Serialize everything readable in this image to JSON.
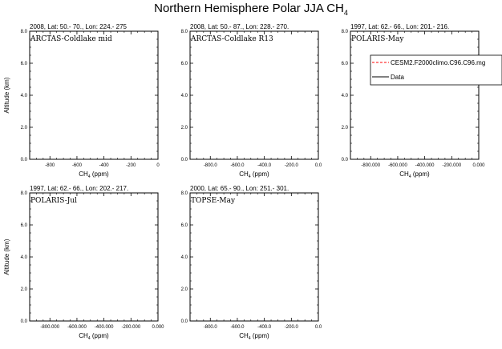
{
  "figure": {
    "title_main": "Northern Hemisphere Polar JJA CH",
    "title_sub": "4"
  },
  "chart_data": [
    {
      "type": "line",
      "header": "2008, Lat:  50.- 70., Lon: 224.- 275",
      "campaign": "ARCTAS-Coldlake mid",
      "xlabel": "CH",
      "xlabel_sub": "4",
      "xlabel_unit": " (ppm)",
      "ylabel": "Altitude (km)",
      "xlim": [
        -950,
        0
      ],
      "ylim": [
        0,
        8
      ],
      "x_ticks": [
        "-800",
        "-600",
        "-400",
        "-200",
        "0"
      ],
      "y_ticks": [
        "0.0",
        "2.0",
        "4.0",
        "6.0",
        "8.0"
      ],
      "series": []
    },
    {
      "type": "line",
      "header": "2008, Lat:  50.- 87., Lon: 228.- 270.",
      "campaign": "ARCTAS-Coldlake R13",
      "xlabel": "CH",
      "xlabel_sub": "4",
      "xlabel_unit": " (ppm)",
      "ylabel": "",
      "xlim": [
        -950,
        0
      ],
      "ylim": [
        0,
        8
      ],
      "x_ticks": [
        "-800.0",
        "-600.0",
        "-400.0",
        "-200.0",
        "0.0"
      ],
      "y_ticks": [
        "0.0",
        "2.0",
        "4.0",
        "6.0",
        "8.0"
      ],
      "series": []
    },
    {
      "type": "line",
      "header": "1997, Lat: 62.- 66., Lon: 201.- 216.",
      "campaign": "POLARIS-May",
      "xlabel": "CH",
      "xlabel_sub": "4",
      "xlabel_unit": " (ppm)",
      "ylabel": "",
      "xlim": [
        -950,
        0
      ],
      "ylim": [
        0,
        8
      ],
      "x_ticks": [
        "-800.000",
        "-600.000",
        "-400.000",
        "-200.000",
        "0.000"
      ],
      "y_ticks": [
        "0.0",
        "2.0",
        "4.0",
        "6.0",
        "8.0"
      ],
      "legend": {
        "placement": "top-right",
        "entries": [
          {
            "label": "CESM2.F2000climo.C96.C96.mg",
            "color": "#ff0000",
            "dashed": true
          },
          {
            "label": "Data",
            "color": "#000000",
            "dashed": false
          }
        ]
      },
      "series": []
    },
    {
      "type": "line",
      "header": "1997, Lat: 62.- 66., Lon: 202.- 217.",
      "campaign": "POLARIS-Jul",
      "xlabel": "CH",
      "xlabel_sub": "4",
      "xlabel_unit": " (ppm)",
      "ylabel": "Altitude (km)",
      "xlim": [
        -950,
        0
      ],
      "ylim": [
        0,
        8
      ],
      "x_ticks": [
        "-800.000",
        "-600.000",
        "-400.000",
        "-200.000",
        "0.000"
      ],
      "y_ticks": [
        "0.0",
        "2.0",
        "4.0",
        "6.0",
        "8.0"
      ],
      "series": []
    },
    {
      "type": "line",
      "header": "2000, Lat: 65.- 90., Lon: 251.- 301.",
      "campaign": "TOPSE-May",
      "xlabel": "CH",
      "xlabel_sub": "4",
      "xlabel_unit": " (ppm)",
      "ylabel": "",
      "xlim": [
        -950,
        0
      ],
      "ylim": [
        0,
        8
      ],
      "x_ticks": [
        "-800.0",
        "-600.0",
        "-400.0",
        "-200.0",
        "0.0"
      ],
      "y_ticks": [
        "0.0",
        "2.0",
        "4.0",
        "6.0",
        "8.0"
      ],
      "series": []
    }
  ]
}
